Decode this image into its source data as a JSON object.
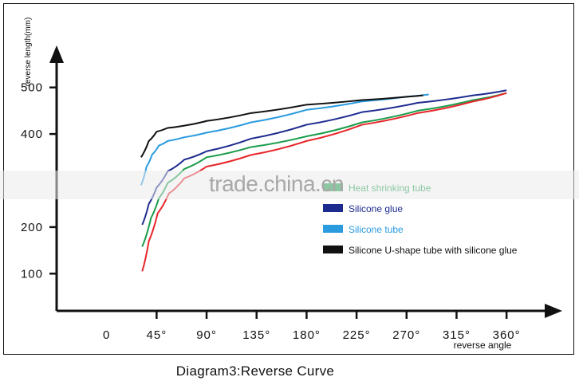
{
  "caption": "Diagram3:Reverse Curve",
  "watermark": "trade.china.cn",
  "chart_data": {
    "type": "line",
    "ylabel": "reverse length(mm)",
    "xlabel": "reverse angle",
    "xlim": [
      -45,
      380
    ],
    "ylim": [
      20,
      580
    ],
    "x_ticks": [
      0,
      45,
      90,
      135,
      180,
      225,
      270,
      315,
      360
    ],
    "x_tick_labels": [
      "0",
      "45°",
      "90°",
      "135°",
      "180°",
      "225°",
      "270°",
      "315°",
      "360°"
    ],
    "y_ticks": [
      100,
      200,
      400,
      500
    ],
    "y_tick_labels": [
      "100",
      "200",
      "400",
      "500"
    ],
    "grid": false,
    "legend_position": "right",
    "series": [
      {
        "name": "Heat shrinking tube",
        "color": "#1a9c4a",
        "x": [
          32,
          40,
          47,
          55,
          70,
          90,
          130,
          180,
          230,
          280,
          330,
          360
        ],
        "y": [
          158,
          220,
          262,
          295,
          325,
          350,
          372,
          395,
          425,
          450,
          473,
          488
        ]
      },
      {
        "name": "Silicone glue",
        "color": "#1d2b8f",
        "x": [
          32,
          38,
          45,
          55,
          70,
          90,
          130,
          180,
          230,
          280,
          330,
          360
        ],
        "y": [
          205,
          250,
          285,
          320,
          345,
          363,
          390,
          420,
          447,
          467,
          483,
          494
        ]
      },
      {
        "name": "Silicone tube",
        "color": "#2b9be0",
        "x": [
          31,
          36,
          41,
          47,
          55,
          70,
          90,
          130,
          180,
          230,
          270,
          290
        ],
        "y": [
          290,
          330,
          356,
          375,
          385,
          393,
          403,
          425,
          452,
          470,
          480,
          485
        ]
      },
      {
        "name": "Silicone U-shape tube with silicone glue",
        "color": "#111111",
        "x": [
          31,
          38,
          45,
          55,
          70,
          90,
          130,
          180,
          230,
          270,
          285
        ],
        "y": [
          350,
          385,
          405,
          413,
          418,
          428,
          445,
          463,
          473,
          480,
          483
        ]
      },
      {
        "name": "",
        "color": "#e8262b",
        "x": [
          32,
          38,
          46,
          56,
          70,
          90,
          130,
          180,
          230,
          280,
          330,
          360
        ],
        "y": [
          105,
          170,
          230,
          272,
          305,
          330,
          355,
          385,
          420,
          445,
          470,
          488
        ]
      }
    ]
  }
}
